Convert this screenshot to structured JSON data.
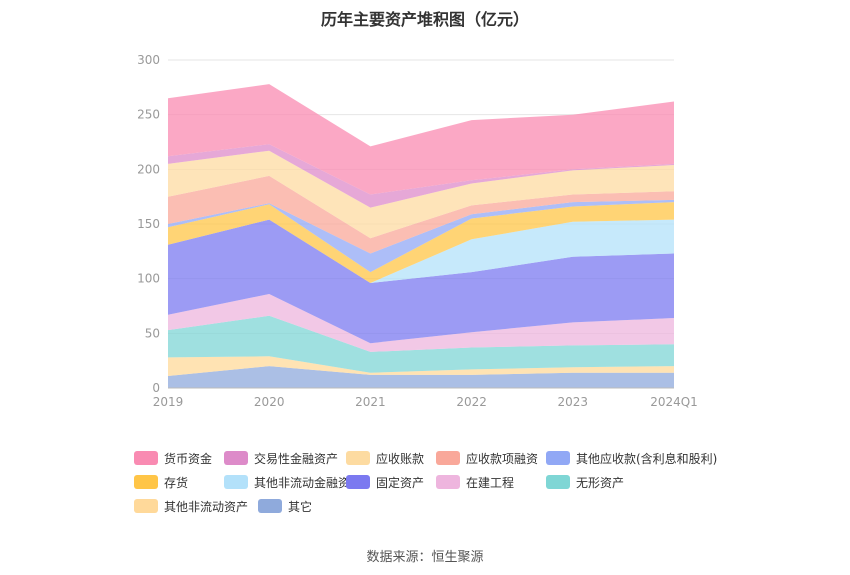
{
  "title": "历年主要资产堆积图（亿元）",
  "source": "数据来源：恒生聚源",
  "chart_data": {
    "type": "area",
    "stacked": true,
    "title": "历年主要资产堆积图（亿元）",
    "xlabel": "",
    "ylabel": "",
    "x": [
      "2019",
      "2020",
      "2021",
      "2022",
      "2023",
      "2024Q1"
    ],
    "ylim": [
      0,
      300
    ],
    "yticks": [
      0,
      50,
      100,
      150,
      200,
      250,
      300
    ],
    "grid": true,
    "legend_position": "bottom",
    "series": [
      {
        "name": "其它",
        "color": "#8FAADC",
        "values": [
          11,
          20,
          12,
          12,
          14,
          14
        ]
      },
      {
        "name": "其他非流动资产",
        "color": "#FFD99A",
        "values": [
          17,
          9,
          2,
          5,
          5,
          6
        ]
      },
      {
        "name": "无形资产",
        "color": "#7FD6D5",
        "values": [
          25,
          37,
          19,
          20,
          20,
          20
        ]
      },
      {
        "name": "在建工程",
        "color": "#EEB5DE",
        "values": [
          14,
          20,
          8,
          14,
          21,
          24
        ]
      },
      {
        "name": "固定资产",
        "color": "#7B79F0",
        "values": [
          64,
          68,
          55,
          55,
          60,
          59
        ]
      },
      {
        "name": "其他非流动金融资产",
        "color": "#B3E1FA",
        "values": [
          0,
          0,
          0,
          30,
          32,
          31
        ]
      },
      {
        "name": "存货",
        "color": "#FFC547",
        "values": [
          16,
          14,
          10,
          19,
          14,
          16
        ]
      },
      {
        "name": "其他应收款(含利息和股利)",
        "color": "#91A8F5",
        "values": [
          3,
          1,
          17,
          4,
          4,
          2
        ]
      },
      {
        "name": "应收款项融资",
        "color": "#F9A89A",
        "values": [
          25,
          25,
          14,
          8,
          7,
          8
        ]
      },
      {
        "name": "应收账款",
        "color": "#FDDBA1",
        "values": [
          30,
          23,
          28,
          20,
          22,
          24
        ]
      },
      {
        "name": "交易性金融资产",
        "color": "#DD8BC9",
        "values": [
          7,
          6,
          12,
          3,
          1,
          1
        ]
      },
      {
        "name": "货币资金",
        "color": "#F98BB2",
        "values": [
          53,
          55,
          44,
          55,
          50,
          57
        ]
      }
    ],
    "legend_order": [
      "货币资金",
      "交易性金融资产",
      "应收账款",
      "应收款项融资",
      "其他应收款(含利息和股利)",
      "存货",
      "其他非流动金融资产",
      "固定资产",
      "在建工程",
      "无形资产",
      "其他非流动资产",
      "其它"
    ]
  }
}
